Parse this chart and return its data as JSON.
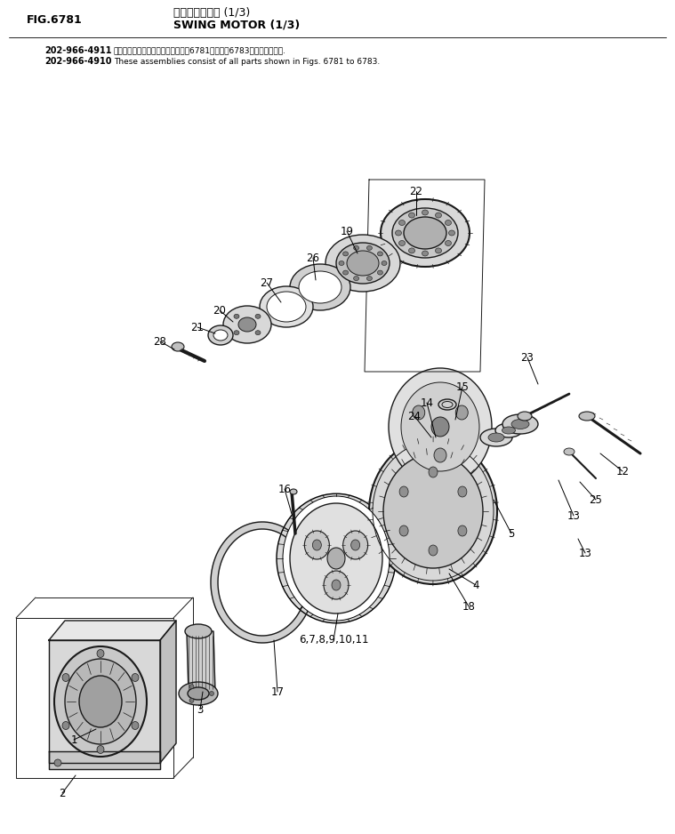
{
  "title_japanese": "スイングモータ (1/3)",
  "title_english": "SWING MOTOR (1/3)",
  "fig_label": "FIG.6781",
  "part_number_1": "202-966-4911",
  "part_note_1_jp": "これらのアセンブリの構成部品は第6781図から第6783図まで含みます.",
  "part_number_2": "202-966-4910",
  "part_note_2_en": "These assemblies consist of all parts shown in Figs. 6781 to 6783.",
  "bg_color": "#ffffff",
  "line_color": "#1a1a1a"
}
